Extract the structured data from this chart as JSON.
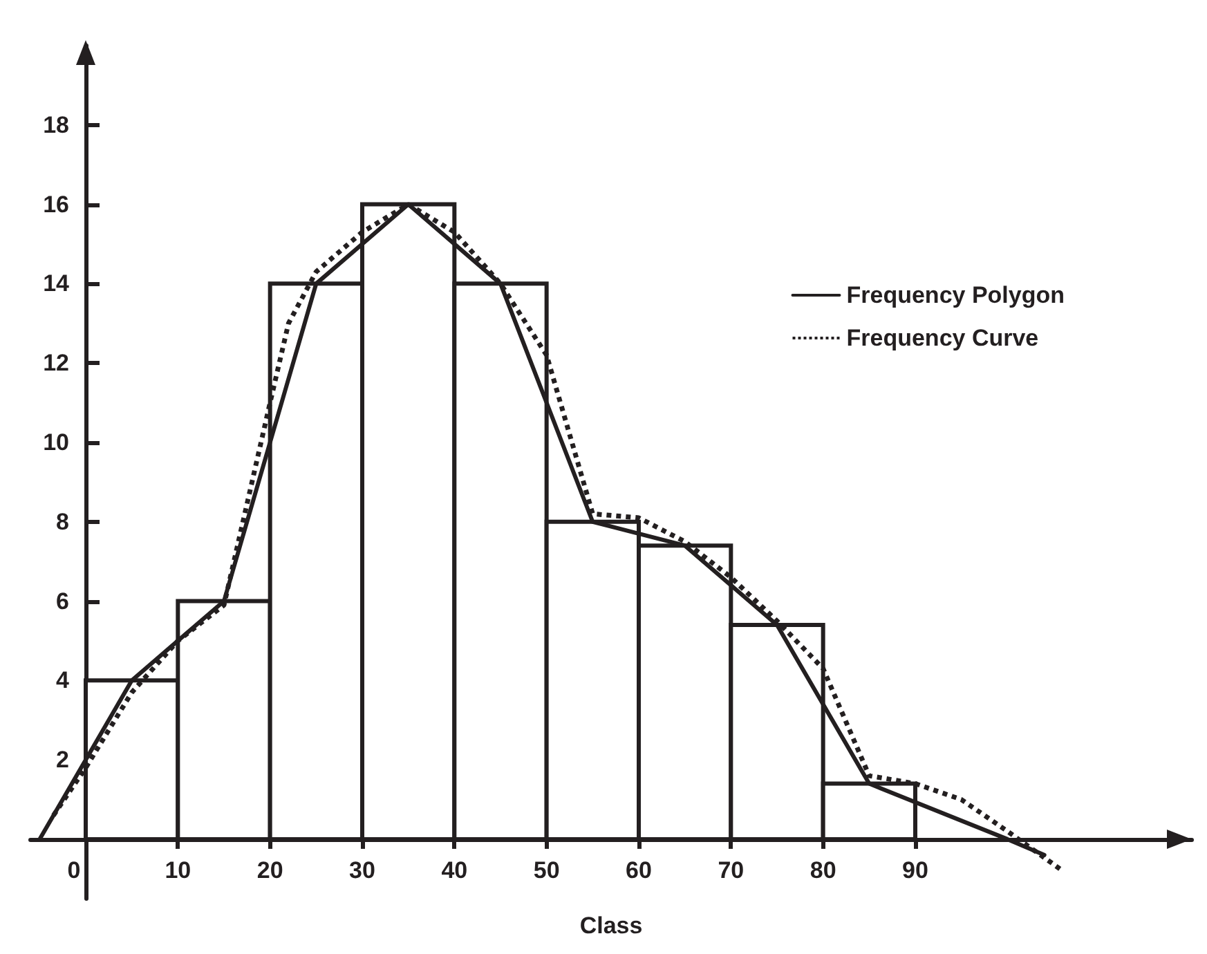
{
  "chart_data": {
    "type": "histogram",
    "xlabel": "Class",
    "bins": [
      0,
      10,
      20,
      30,
      40,
      50,
      60,
      70,
      80,
      90
    ],
    "values": [
      4,
      6,
      14,
      16,
      14,
      8,
      7.4,
      5.4,
      1.4
    ],
    "color": "#231f20",
    "xlim": [
      -6,
      120
    ],
    "ylim": [
      -1.5,
      20
    ],
    "xticks": [
      0,
      10,
      20,
      30,
      40,
      50,
      60,
      70,
      80,
      90
    ],
    "yticks": [
      2,
      4,
      6,
      8,
      10,
      12,
      14,
      16,
      18
    ],
    "grid": false,
    "legend": "top right",
    "marker": "none",
    "series": [
      {
        "name": "Frequency Polygon",
        "type": "line",
        "line_style": "solid",
        "color": "#231f20",
        "x": [
          -5,
          5,
          15,
          25,
          35,
          45,
          55,
          65,
          75,
          85,
          100,
          104
        ],
        "values": [
          0,
          4,
          6,
          14,
          16,
          14,
          8,
          7.4,
          5.4,
          1.4,
          0,
          -0.4
        ]
      },
      {
        "name": "Frequency Curve",
        "type": "line",
        "line_style": "dotted",
        "color": "#231f20",
        "x": [
          -3.5,
          0,
          5,
          10,
          15,
          20,
          22,
          25,
          30,
          35,
          40,
          45,
          50,
          55,
          60,
          65,
          70,
          75,
          80,
          85,
          90,
          95,
          100,
          106
        ],
        "values": [
          0.6,
          1.8,
          3.7,
          5,
          5.9,
          11,
          13,
          14.3,
          15.3,
          16,
          15.3,
          14,
          12.2,
          8.2,
          8.1,
          7.5,
          6.6,
          5.5,
          4.3,
          1.6,
          1.4,
          1,
          0.2,
          -0.8
        ]
      }
    ]
  }
}
